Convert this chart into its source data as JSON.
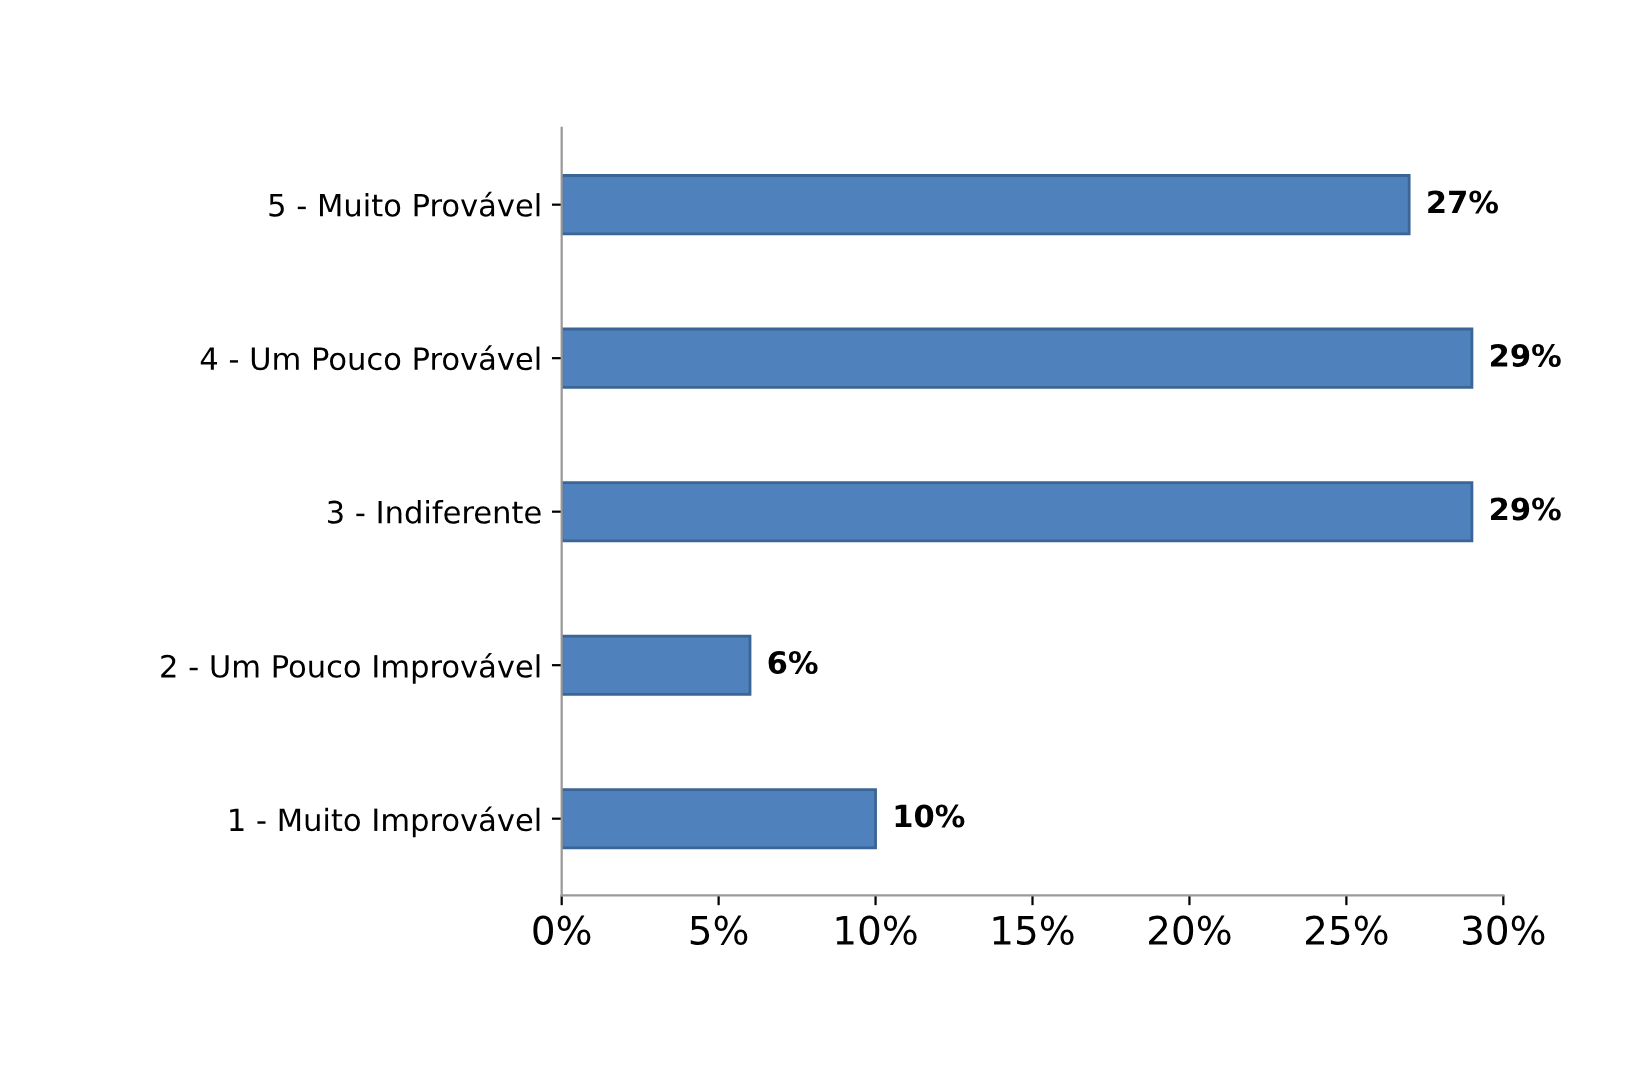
{
  "chart_data": {
    "type": "bar",
    "orientation": "horizontal",
    "categories": [
      "5 - Muito Provável",
      "4 - Um Pouco Provável",
      "3 - Indiferente",
      "2 - Um Pouco Improvável",
      "1 - Muito Improvável"
    ],
    "values": [
      27,
      29,
      29,
      6,
      10
    ],
    "value_labels": [
      "27%",
      "29%",
      "29%",
      "6%",
      "10%"
    ],
    "color": "#4f81bd",
    "xlim": [
      0,
      30
    ],
    "xticks": [
      {
        "value": 0,
        "label": "0%"
      },
      {
        "value": 5,
        "label": "5%"
      },
      {
        "value": 10,
        "label": "10%"
      },
      {
        "value": 15,
        "label": "15%"
      },
      {
        "value": 20,
        "label": "20%"
      },
      {
        "value": 25,
        "label": "25%"
      },
      {
        "value": 30,
        "label": "30%"
      }
    ],
    "grid": false
  }
}
